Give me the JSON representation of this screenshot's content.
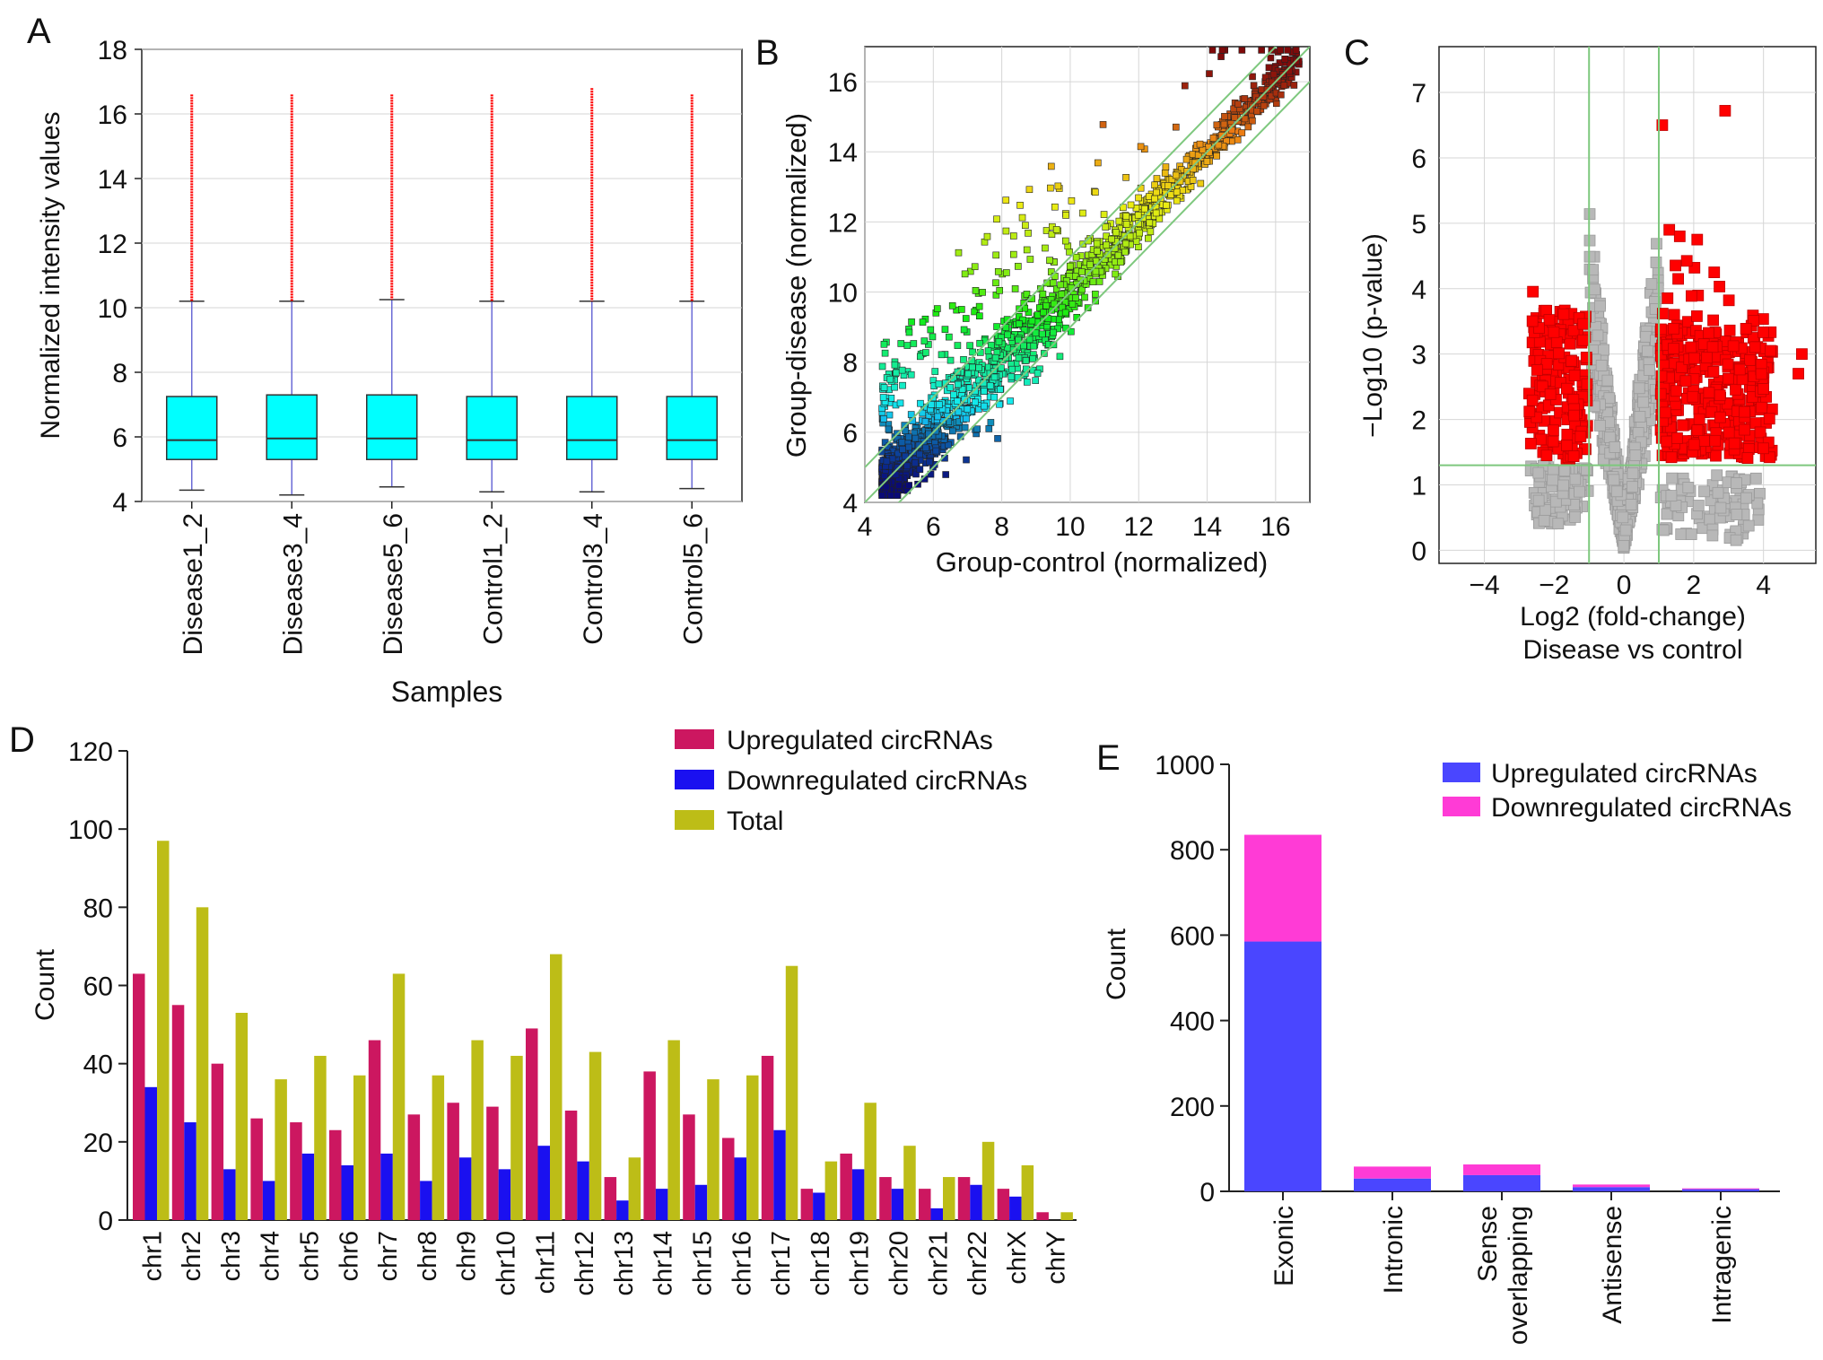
{
  "panel_letters": {
    "a": "A",
    "b": "B",
    "c": "C",
    "d": "D",
    "e": "E"
  },
  "colors": {
    "box_fill": "#00ffff",
    "whisker": "#6b6bd6",
    "outlier": "#ff0000",
    "grid": "#d6d6d6",
    "ref_line": "#7ec87e",
    "volcano_sig": "#ff0000",
    "volcano_ns": "#b8b8b8",
    "up_d": "#cc1760",
    "down_d": "#1a10f0",
    "total_d": "#bdbd17",
    "up_e": "#4a46ff",
    "down_e": "#ff3bd6"
  },
  "chart_data": [
    {
      "id": "A",
      "type": "box",
      "xlabel": "Samples",
      "ylabel": "Normalized intensity values",
      "ylim": [
        4,
        18
      ],
      "yticks": [
        "4",
        "6",
        "8",
        "10",
        "12",
        "14",
        "16",
        "18"
      ],
      "samples": [
        {
          "name": "Disease1_2",
          "min": 4.35,
          "q1": 5.3,
          "median": 5.9,
          "q3": 7.25,
          "whisker_high": 10.2,
          "outlier_max": 16.6
        },
        {
          "name": "Disease3_4",
          "min": 4.2,
          "q1": 5.3,
          "median": 5.95,
          "q3": 7.3,
          "whisker_high": 10.2,
          "outlier_max": 16.6
        },
        {
          "name": "Disease5_6",
          "min": 4.45,
          "q1": 5.3,
          "median": 5.95,
          "q3": 7.3,
          "whisker_high": 10.25,
          "outlier_max": 16.6
        },
        {
          "name": "Control1_2",
          "min": 4.3,
          "q1": 5.3,
          "median": 5.9,
          "q3": 7.25,
          "whisker_high": 10.2,
          "outlier_max": 16.6
        },
        {
          "name": "Control3_4",
          "min": 4.3,
          "q1": 5.3,
          "median": 5.9,
          "q3": 7.25,
          "whisker_high": 10.2,
          "outlier_max": 16.8
        },
        {
          "name": "Control5_6",
          "min": 4.4,
          "q1": 5.3,
          "median": 5.9,
          "q3": 7.25,
          "whisker_high": 10.2,
          "outlier_max": 16.6
        }
      ]
    },
    {
      "id": "B",
      "type": "scatter",
      "xlabel": "Group-control (normalized)",
      "ylabel": "Group-disease (normalized)",
      "xlim": [
        4,
        17
      ],
      "ylim": [
        4,
        17
      ],
      "xticks": [
        "4",
        "6",
        "8",
        "10",
        "12",
        "14",
        "16"
      ],
      "yticks": [
        "4",
        "6",
        "8",
        "10",
        "12",
        "14",
        "16"
      ],
      "reference_lines": [
        {
          "name": "y=x",
          "offset": 0
        },
        {
          "name": "fold-change +1",
          "offset": 1
        },
        {
          "name": "fold-change -1",
          "offset": -1
        }
      ]
    },
    {
      "id": "C",
      "type": "scatter",
      "xlabel": "Log2 (fold-change)",
      "xlabel2": "Disease vs control",
      "ylabel": "−Log10 (p-value)",
      "xlim": [
        -5.3,
        5.5
      ],
      "ylim": [
        -0.2,
        7.7
      ],
      "xticks": [
        "−4",
        "−2",
        "0",
        "2",
        "4"
      ],
      "yticks": [
        "0",
        "1",
        "2",
        "3",
        "4",
        "5",
        "6",
        "7"
      ],
      "thresholds": {
        "log2fc": [
          -1,
          1
        ],
        "neg_log10_p": 1.3
      }
    },
    {
      "id": "D",
      "type": "bar",
      "ylabel": "Count",
      "ylim": [
        0,
        120
      ],
      "yticks": [
        "0",
        "20",
        "40",
        "60",
        "80",
        "100",
        "120"
      ],
      "categories": [
        "chr1",
        "chr2",
        "chr3",
        "chr4",
        "chr5",
        "chr6",
        "chr7",
        "chr8",
        "chr9",
        "chr10",
        "chr11",
        "chr12",
        "chr13",
        "chr14",
        "chr15",
        "chr16",
        "chr17",
        "chr18",
        "chr19",
        "chr20",
        "chr21",
        "chr22",
        "chrX",
        "chrY"
      ],
      "series": [
        {
          "name": "Upregulated circRNAs",
          "values": [
            63,
            55,
            40,
            26,
            25,
            23,
            46,
            27,
            30,
            29,
            49,
            28,
            11,
            38,
            27,
            21,
            42,
            8,
            17,
            11,
            8,
            11,
            8,
            2
          ]
        },
        {
          "name": "Downregulated circRNAs",
          "values": [
            34,
            25,
            13,
            10,
            17,
            14,
            17,
            10,
            16,
            13,
            19,
            15,
            5,
            8,
            9,
            16,
            23,
            7,
            13,
            8,
            3,
            9,
            6,
            0
          ]
        },
        {
          "name": "Total",
          "values": [
            97,
            80,
            53,
            36,
            42,
            37,
            63,
            37,
            46,
            42,
            68,
            43,
            16,
            46,
            36,
            37,
            65,
            15,
            30,
            19,
            11,
            20,
            14,
            2
          ]
        }
      ],
      "legend": "top-right"
    },
    {
      "id": "E",
      "type": "stacked-bar",
      "ylabel": "Count",
      "ylim": [
        0,
        1000
      ],
      "yticks": [
        "0",
        "200",
        "400",
        "600",
        "800",
        "1000"
      ],
      "categories": [
        "Exonic",
        "Intronic",
        "Sense overlapping",
        "Antisense",
        "Intragenic"
      ],
      "category_lines": [
        [
          "Exonic"
        ],
        [
          "Intronic"
        ],
        [
          "Sense",
          "overlapping"
        ],
        [
          "Antisense"
        ],
        [
          "Intragenic"
        ]
      ],
      "series": [
        {
          "name": "Upregulated circRNAs",
          "values": [
            585,
            30,
            38,
            10,
            5
          ]
        },
        {
          "name": "Downregulated circRNAs",
          "values": [
            250,
            28,
            25,
            6,
            2
          ]
        }
      ],
      "legend": "top-right"
    }
  ]
}
